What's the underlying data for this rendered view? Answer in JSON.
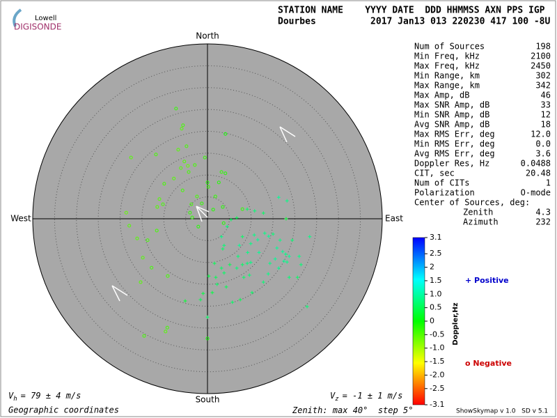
{
  "header": {
    "logo_top": "Lowell",
    "logo_bottom": "DIGISONDE",
    "line1": "STATION NAME    YYYY DATE  DDD HHMMSS AXN PPS IGP",
    "line2": "Dourbes          2017 Jan13 013 220230 417 100 -8U"
  },
  "stats": {
    "rows": [
      [
        "Num of Sources",
        "198"
      ],
      [
        "Min Freq, kHz",
        "2100"
      ],
      [
        "Max Freq, kHz",
        "2450"
      ],
      [
        "Min Range, km",
        "302"
      ],
      [
        "Max Range, km",
        "342"
      ],
      [
        "Max Amp, dB",
        "46"
      ],
      [
        "Max SNR Amp, dB",
        "33"
      ],
      [
        "Min SNR Amp, dB",
        "12"
      ],
      [
        "Avg SNR Amp, dB",
        "18"
      ],
      [
        "Max RMS Err, deg",
        "12.0"
      ],
      [
        "Min RMS Err, deg",
        "0.0"
      ],
      [
        "Avg RMS Err, deg",
        "3.6"
      ],
      [
        "Doppler Res, Hz",
        "0.0488"
      ],
      [
        "CIT, sec",
        "20.48"
      ],
      [
        "Num of CITs",
        "1"
      ],
      [
        "Polarization",
        "O-mode"
      ]
    ],
    "center_title": "Center of Sources, deg:",
    "center_rows": [
      [
        "Zenith",
        "4.3"
      ],
      [
        "Azimuth",
        "232"
      ]
    ]
  },
  "footer": {
    "vh": {
      "symbol": "V",
      "subscript": "h",
      "text": "= 79 ± 4 m/s"
    },
    "vz": {
      "symbol": "V",
      "subscript": "z",
      "text": "= -1 ± 1 m/s"
    },
    "coords": "Geographic coordinates",
    "version": "ShowSkymap v 1.0   SD v 5.1"
  },
  "chart_data": {
    "type": "skymap",
    "directions": {
      "north": "North",
      "south": "South",
      "west": "West",
      "east": "East"
    },
    "zenith_prefix": "Zenith: max ",
    "zenith_max": 40,
    "step_prefix": "°  step ",
    "ring_step": 5,
    "deg_suffix": "°",
    "colorbar": {
      "label": "Doppler,Hz",
      "clim": [
        -3.1,
        3.1
      ],
      "colors": [
        "#ff0000",
        "#ffff00",
        "#00ff00",
        "#00ffff",
        "#0000ff"
      ],
      "ticks": [
        3.1,
        2.5,
        {
          "value": 2,
          "label": "2"
        },
        1.5,
        {
          "value": 1,
          "label": "1.0"
        },
        0.5,
        0,
        -0.5,
        {
          "value": -1,
          "label": "-1.0"
        },
        -1.5,
        {
          "value": -2,
          "label": "-2.0"
        },
        -2.5,
        -3.1
      ]
    },
    "positive": {
      "name": "+ Positive",
      "color": "#0000cc",
      "points": [
        [
          16.3,
          4.9,
          0.9
        ],
        [
          18.0,
          0.0,
          0.3
        ],
        [
          18.2,
          4.1,
          0.8
        ],
        [
          12.8,
          1.3,
          0.6
        ],
        [
          10.8,
          1.8,
          0.7
        ],
        [
          9.1,
          2.2,
          0.6
        ],
        [
          6.7,
          0.2,
          0.5
        ],
        [
          5.4,
          -0.2,
          0.6
        ],
        [
          4.5,
          -1.8,
          0.7
        ],
        [
          3.2,
          -4.1,
          0.8
        ],
        [
          3.8,
          -6.1,
          0.7
        ],
        [
          3.5,
          -6.9,
          0.6
        ],
        [
          7.3,
          -6.1,
          0.9
        ],
        [
          10.7,
          -3.7,
          0.8
        ],
        [
          11.5,
          -4.8,
          0.9
        ],
        [
          13.1,
          -3.3,
          0.8
        ],
        [
          14.0,
          -4.0,
          0.9
        ],
        [
          15.0,
          -3.5,
          0.7
        ],
        [
          15.9,
          -6.7,
          0.9
        ],
        [
          16.6,
          -4.9,
          0.8
        ],
        [
          17.2,
          -7.5,
          0.9
        ],
        [
          17.9,
          -8.1,
          0.8
        ],
        [
          15.5,
          -9.2,
          0.9
        ],
        [
          14.3,
          -10.2,
          0.8
        ],
        [
          16.3,
          -11.3,
          0.9
        ],
        [
          18.2,
          -9.9,
          0.8
        ],
        [
          18.7,
          -8.6,
          0.9
        ],
        [
          21.0,
          -8.6,
          0.8
        ],
        [
          21.4,
          -10.5,
          0.7
        ],
        [
          23.4,
          -4.1,
          0.8
        ],
        [
          19.4,
          -4.9,
          0.7
        ],
        [
          17.5,
          -9.7,
          0.9
        ],
        [
          9.9,
          -10.0,
          0.8
        ],
        [
          9.1,
          -10.2,
          0.7
        ],
        [
          8.0,
          -10.5,
          0.6
        ],
        [
          6.7,
          -11.3,
          0.7
        ],
        [
          8.3,
          -13.4,
          0.6
        ],
        [
          9.6,
          -12.9,
          0.7
        ],
        [
          5.1,
          -10.5,
          0.5
        ],
        [
          3.2,
          -11.3,
          0.6
        ],
        [
          1.6,
          -10.2,
          0.5
        ],
        [
          0.3,
          -13.1,
          0.4
        ],
        [
          1.9,
          -13.4,
          0.5
        ],
        [
          3.8,
          -12.4,
          0.6
        ],
        [
          4.3,
          -15.6,
          0.5
        ],
        [
          2.2,
          -15.0,
          0.6
        ],
        [
          1.1,
          -16.9,
          0.4
        ],
        [
          -1.0,
          -17.1,
          0.4
        ],
        [
          -1.6,
          -18.5,
          0.5
        ],
        [
          -5.1,
          -18.8,
          0.3
        ],
        [
          5.7,
          -19.1,
          0.6
        ],
        [
          7.5,
          -18.5,
          0.5
        ],
        [
          10.2,
          -16.9,
          0.6
        ],
        [
          12.8,
          -14.5,
          0.7
        ],
        [
          13.9,
          -12.6,
          0.8
        ],
        [
          18.7,
          -13.4,
          0.7
        ],
        [
          20.6,
          -13.4,
          0.6
        ],
        [
          22.8,
          -20.1,
          0.7
        ],
        [
          0.0,
          -22.5,
          0.6
        ],
        [
          11.8,
          -7.7,
          0.9
        ],
        [
          9.2,
          -7.7,
          0.8
        ],
        [
          7.0,
          -8.6,
          0.7
        ],
        [
          8.0,
          -4.1,
          0.6
        ],
        [
          9.9,
          -5.7,
          0.8
        ]
      ]
    },
    "negative": {
      "name": "o Negative",
      "color": "#cc0000",
      "points": [
        [
          -7.2,
          25.2,
          -0.3
        ],
        [
          -5.6,
          21.4,
          -0.4
        ],
        [
          -5.9,
          20.6,
          -0.5
        ],
        [
          -17.5,
          14.0,
          -0.5
        ],
        [
          -11.8,
          14.7,
          -0.4
        ],
        [
          -6.7,
          15.8,
          -0.5
        ],
        [
          -4.8,
          16.6,
          -0.4
        ],
        [
          -5.3,
          13.1,
          -0.5
        ],
        [
          -4.5,
          12.1,
          -0.6
        ],
        [
          -2.9,
          12.3,
          -0.4
        ],
        [
          -0.6,
          14.0,
          -0.3
        ],
        [
          -6.1,
          11.6,
          -0.5
        ],
        [
          -4.3,
          10.7,
          -0.4
        ],
        [
          -7.7,
          9.2,
          -0.5
        ],
        [
          -9.9,
          8.0,
          -0.4
        ],
        [
          0.0,
          8.3,
          -0.2
        ],
        [
          3.2,
          10.7,
          -0.3
        ],
        [
          4.1,
          10.4,
          -0.2
        ],
        [
          0.2,
          7.3,
          -0.3
        ],
        [
          2.6,
          8.3,
          -0.2
        ],
        [
          1.8,
          5.1,
          -0.3
        ],
        [
          -2.4,
          5.1,
          -0.4
        ],
        [
          -1.3,
          3.5,
          -0.3
        ],
        [
          -3.7,
          3.3,
          -0.4
        ],
        [
          -4.0,
          1.4,
          -0.3
        ],
        [
          -11.0,
          4.5,
          -0.5
        ],
        [
          -10.2,
          3.3,
          -0.4
        ],
        [
          -11.5,
          2.7,
          -0.5
        ],
        [
          -18.6,
          1.4,
          -0.6
        ],
        [
          -17.9,
          -1.6,
          -0.5
        ],
        [
          -11.6,
          -2.7,
          -0.4
        ],
        [
          -16.1,
          -4.5,
          -0.5
        ],
        [
          -13.7,
          -4.9,
          -0.4
        ],
        [
          -14.8,
          -8.9,
          -0.5
        ],
        [
          -12.8,
          -11.2,
          -0.4
        ],
        [
          -15.3,
          -14.5,
          -0.5
        ],
        [
          -9.1,
          -13.1,
          -0.4
        ],
        [
          1.3,
          2.1,
          -0.2
        ],
        [
          3.5,
          2.7,
          -0.2
        ],
        [
          8.0,
          2.2,
          -0.3
        ],
        [
          4.1,
          19.4,
          -0.1
        ],
        [
          -3.5,
          0.3,
          -0.3
        ],
        [
          -2.1,
          -1.8,
          -0.2
        ],
        [
          -9.2,
          -24.9,
          -0.4
        ],
        [
          -9.6,
          -25.8,
          -0.5
        ],
        [
          -14.5,
          -26.8,
          -0.4
        ],
        [
          0.0,
          -27.4,
          -0.1
        ],
        [
          3.7,
          -1.0,
          -0.2
        ],
        [
          -5.7,
          6.5,
          -0.4
        ]
      ]
    }
  }
}
